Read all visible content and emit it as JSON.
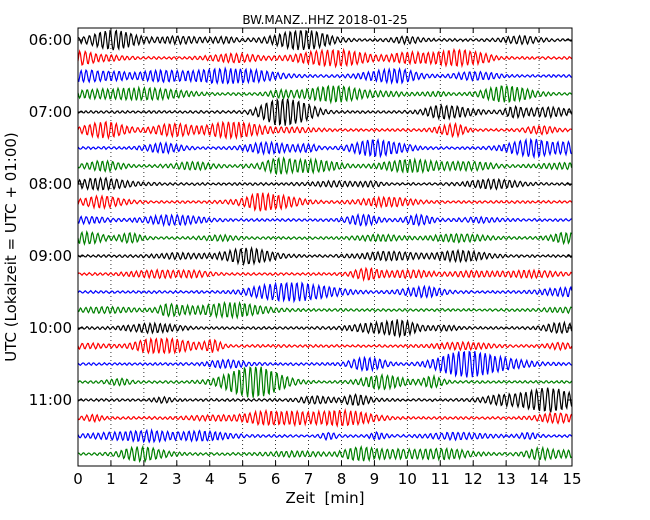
{
  "chart_data": {
    "type": "line",
    "title": "BW.MANZ..HHZ 2018-01-25",
    "xlabel": "Zeit  [min]",
    "ylabel": "UTC (Lokalzeit = UTC + 01:00)",
    "xlim": [
      0,
      15
    ],
    "x_ticks": [
      "0",
      "1",
      "2",
      "3",
      "4",
      "5",
      "6",
      "7",
      "8",
      "9",
      "10",
      "11",
      "12",
      "13",
      "14",
      "15"
    ],
    "y_ticks": [
      "06:00",
      "07:00",
      "08:00",
      "09:00",
      "10:00",
      "11:00"
    ],
    "start_time": "06:00",
    "row_duration_min": 15,
    "trace_count": 24,
    "grid": "vertical dotted at each minute",
    "trace_colors": [
      "#000000",
      "#ff0000",
      "#0000ff",
      "#008000"
    ]
  }
}
